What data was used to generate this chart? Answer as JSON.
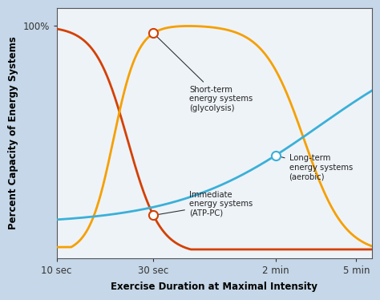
{
  "title": "",
  "xlabel": "Exercise Duration at Maximal Intensity",
  "ylabel": "Percent Capacity of Energy Systems",
  "background_color": "#c5d7e8",
  "plot_bg_color": "#eef3f8",
  "xtick_labels": [
    "10 sec",
    "30 sec",
    "2 min",
    "5 min"
  ],
  "xtick_positions": [
    10,
    30,
    120,
    300
  ],
  "ytick_labels": [
    "100%"
  ],
  "ytick_positions": [
    100
  ],
  "atp_pc_color": "#d44000",
  "glycolysis_color": "#f5a000",
  "aerobic_color": "#3ab0d8",
  "label_short_term": "Short-term\nenergy systems\n(glycolysis)",
  "label_long_term": "Long-term\nenergy systems\n(aerobic)",
  "label_immediate": "Immediate\nenergy systems\n(ATP-PC)"
}
